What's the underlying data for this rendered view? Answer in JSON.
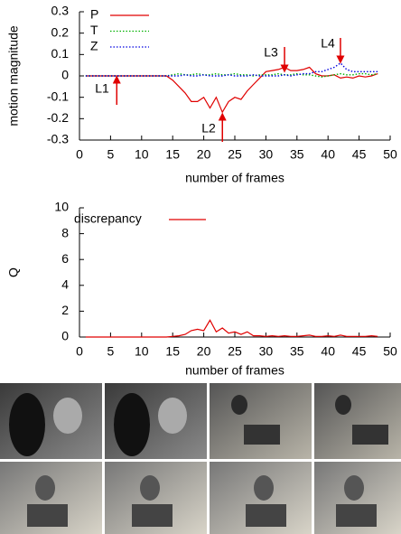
{
  "chart_data": [
    {
      "type": "line",
      "xlabel": "number of frames",
      "ylabel": "motion magnitude",
      "x": [
        1,
        2,
        3,
        4,
        5,
        6,
        7,
        8,
        9,
        10,
        11,
        12,
        13,
        14,
        15,
        16,
        17,
        18,
        19,
        20,
        21,
        22,
        23,
        24,
        25,
        26,
        27,
        28,
        29,
        30,
        31,
        32,
        33,
        34,
        35,
        36,
        37,
        38,
        39,
        40,
        41,
        42,
        43,
        44,
        45,
        46,
        47,
        48
      ],
      "series": [
        {
          "name": "P",
          "color": "#e00000",
          "dash": "solid",
          "values": [
            0,
            0,
            0,
            0,
            0,
            0,
            0,
            0,
            0,
            0,
            0,
            0,
            0,
            0,
            -0.02,
            -0.05,
            -0.08,
            -0.12,
            -0.12,
            -0.1,
            -0.15,
            -0.1,
            -0.17,
            -0.12,
            -0.1,
            -0.11,
            -0.07,
            -0.04,
            -0.01,
            0.02,
            0.025,
            0.03,
            0.04,
            0.025,
            0.025,
            0.03,
            0.04,
            0.01,
            0,
            0,
            0.005,
            -0.01,
            -0.005,
            -0.01,
            0,
            -0.005,
            0,
            0.01
          ]
        },
        {
          "name": "T",
          "color": "#00b000",
          "dash": "dotted",
          "values": [
            0,
            0,
            0,
            0,
            0,
            0,
            0,
            0,
            0,
            0,
            0,
            0,
            0,
            0,
            0.005,
            0.01,
            0.005,
            0.005,
            0.01,
            0.005,
            0.005,
            0.01,
            0.005,
            0.005,
            0.01,
            0.005,
            0.005,
            0,
            0.005,
            0.005,
            0.005,
            0.01,
            0.005,
            0.005,
            0.01,
            0.005,
            0.005,
            0,
            -0.005,
            0,
            0.005,
            0.01,
            0.005,
            0.005,
            0.01,
            0.01,
            0.005,
            0.01
          ]
        },
        {
          "name": "Z",
          "color": "#0000e0",
          "dash": "dotted",
          "values": [
            0,
            0,
            0,
            0,
            0,
            0,
            0,
            0,
            0,
            0,
            0,
            0,
            0,
            0,
            0,
            0,
            0.005,
            0,
            0,
            0.005,
            0,
            0,
            0,
            0.005,
            0,
            0,
            0,
            0.005,
            0,
            0,
            0,
            0,
            0.005,
            0,
            0.005,
            0.01,
            0.01,
            0.02,
            0.02,
            0.03,
            0.04,
            0.06,
            0.03,
            0.02,
            0.02,
            0.02,
            0.02,
            0.02
          ]
        }
      ],
      "annotations": [
        {
          "text": "L1",
          "x": 6
        },
        {
          "text": "L2",
          "x": 23
        },
        {
          "text": "L3",
          "x": 33
        },
        {
          "text": "L4",
          "x": 42
        }
      ],
      "xlim": [
        0,
        50
      ],
      "xticks": [
        0,
        5,
        10,
        15,
        20,
        25,
        30,
        35,
        40,
        45,
        50
      ],
      "ylim": [
        -0.3,
        0.3
      ],
      "yticks": [
        -0.3,
        -0.2,
        -0.1,
        0,
        0.1,
        0.2,
        0.3
      ],
      "grid": false,
      "legend": "top-left"
    },
    {
      "type": "line",
      "xlabel": "number of frames",
      "ylabel": "Q",
      "x": [
        1,
        2,
        3,
        4,
        5,
        6,
        7,
        8,
        9,
        10,
        11,
        12,
        13,
        14,
        15,
        16,
        17,
        18,
        19,
        20,
        21,
        22,
        23,
        24,
        25,
        26,
        27,
        28,
        29,
        30,
        31,
        32,
        33,
        34,
        35,
        36,
        37,
        38,
        39,
        40,
        41,
        42,
        43,
        44,
        45,
        46,
        47,
        48
      ],
      "series": [
        {
          "name": "discrepancy",
          "color": "#e00000",
          "dash": "solid",
          "values": [
            0,
            0,
            0,
            0,
            0,
            0,
            0,
            0,
            0,
            0,
            0,
            0,
            0,
            0,
            0.05,
            0.1,
            0.2,
            0.5,
            0.6,
            0.5,
            1.3,
            0.4,
            0.7,
            0.3,
            0.4,
            0.2,
            0.4,
            0.1,
            0.1,
            0.05,
            0.1,
            0.05,
            0.1,
            0.05,
            0.05,
            0.1,
            0.15,
            0.05,
            0.05,
            0.1,
            0.05,
            0.15,
            0.05,
            0.05,
            0.05,
            0.05,
            0.1,
            0.05
          ]
        }
      ],
      "xlim": [
        0,
        50
      ],
      "xticks": [
        0,
        5,
        10,
        15,
        20,
        25,
        30,
        35,
        40,
        45,
        50
      ],
      "ylim": [
        0,
        10
      ],
      "yticks": [
        0,
        2,
        4,
        6,
        8,
        10
      ],
      "grid": false,
      "legend": "top-left"
    }
  ]
}
